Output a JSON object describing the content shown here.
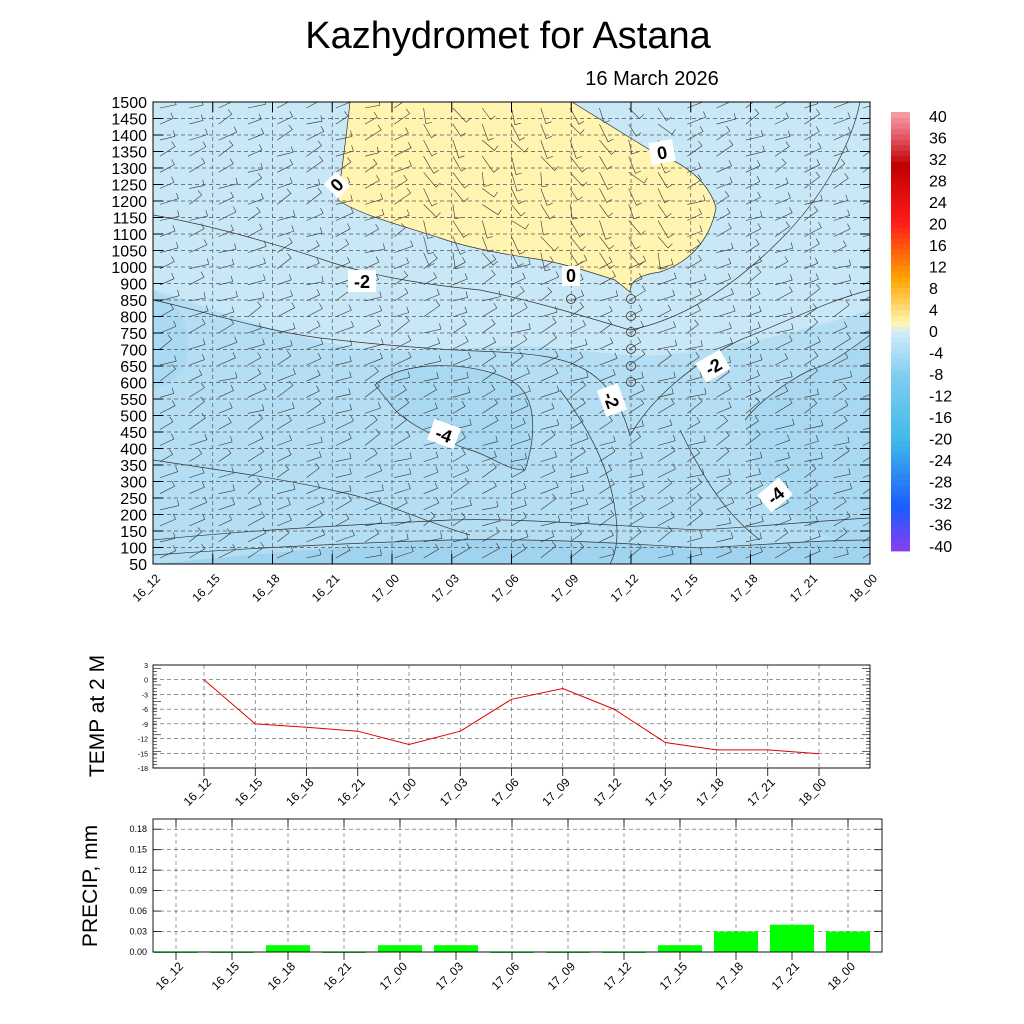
{
  "header": {
    "title": "Kazhydromet  for Astana",
    "date": "16 March 2026"
  },
  "time_labels": [
    "16_12",
    "16_15",
    "16_18",
    "16_21",
    "17_00",
    "17_03",
    "17_06",
    "17_09",
    "17_12",
    "17_15",
    "17_18",
    "17_21",
    "18_00"
  ],
  "chart_data": [
    {
      "type": "heatmap",
      "subtype": "time-height cross-section (filled temperature contours with wind barbs)",
      "title": "Kazhydromet  for Astana",
      "subtitle": "16 March 2026",
      "x": [
        "16_12",
        "16_15",
        "16_18",
        "16_21",
        "17_00",
        "17_03",
        "17_06",
        "17_09",
        "17_12",
        "17_15",
        "17_18",
        "17_21",
        "18_00"
      ],
      "y_levels": [
        50,
        100,
        150,
        200,
        250,
        300,
        350,
        400,
        450,
        500,
        550,
        600,
        650,
        700,
        750,
        800,
        850,
        900,
        1000,
        1050,
        1100,
        1150,
        1200,
        1250,
        1300,
        1350,
        1400,
        1450,
        1500
      ],
      "y_tick_labels": [
        "50",
        "100",
        "150",
        "200",
        "250",
        "300",
        "350",
        "400",
        "450",
        "500",
        "550",
        "600",
        "650",
        "700",
        "750",
        "800",
        "850",
        "900",
        "1000",
        "1050",
        "1100",
        "1150",
        "1200",
        "1250",
        "1300",
        "1350",
        "1400",
        "1450",
        "1500"
      ],
      "colorbar": {
        "levels": [
          -40,
          -36,
          -32,
          -28,
          -24,
          -20,
          -16,
          -12,
          -8,
          -4,
          0,
          4,
          8,
          12,
          16,
          20,
          24,
          28,
          32,
          36,
          40
        ],
        "labels": [
          "40",
          "36",
          "32",
          "28",
          "24",
          "20",
          "16",
          "12",
          "8",
          "4",
          "0",
          "-4",
          "-8",
          "-12",
          "-16",
          "-20",
          "-24",
          "-28",
          "-32",
          "-36",
          "-40"
        ],
        "colors": {
          "neg_light": "#d3ecf8",
          "neg_mid": "#a5d8f0",
          "neg_dark": "#3fb8e8",
          "neg_blue": "#1a5cff",
          "neg_purple": "#8a3ef0",
          "zero_band": "#fff5b0",
          "warm_orange": "#ffa500",
          "warm_red": "#ff1a1a",
          "warm_dark": "#c00000",
          "pink_top": "#f8a0a8"
        }
      },
      "contour_labels": [
        "0",
        "0",
        "0",
        "-2",
        "-2",
        "-2",
        "-4",
        "-4"
      ],
      "regions": [
        {
          "name": "above-zero",
          "value_range": [
            0,
            4
          ],
          "color": "#fff5b0"
        },
        {
          "name": "below-zero",
          "value_range": [
            -4,
            0
          ],
          "color": "#c9e8f7"
        },
        {
          "name": "cold-pocket",
          "value_range": [
            -8,
            -4
          ],
          "color": "#a8d8f2"
        }
      ],
      "grid": true
    },
    {
      "type": "line",
      "ylabel": "TEMP at 2 M",
      "x": [
        "16_12",
        "16_15",
        "16_18",
        "16_21",
        "17_00",
        "17_03",
        "17_06",
        "17_09",
        "17_12",
        "17_15",
        "17_18",
        "17_21",
        "18_00"
      ],
      "series": [
        {
          "values": [
            0,
            -9,
            -9.7,
            -10.5,
            -13.2,
            -10.5,
            -4,
            -1.8,
            -6,
            -12.8,
            -14.3,
            -14.3,
            -15.1
          ],
          "color": "#e00000"
        }
      ],
      "ylim": [
        -18,
        3
      ],
      "y_ticks": [
        3,
        0,
        -3,
        -6,
        -9,
        -12,
        -15,
        -18
      ],
      "grid": true
    },
    {
      "type": "bar",
      "ylabel": "PRECIP, mm",
      "categories": [
        "16_12",
        "16_15",
        "16_18",
        "16_21",
        "17_00",
        "17_03",
        "17_06",
        "17_09",
        "17_12",
        "17_15",
        "17_18",
        "17_21",
        "18_00"
      ],
      "values": [
        0,
        0,
        0.01,
        0,
        0.01,
        0.01,
        0,
        0,
        0,
        0.01,
        0.03,
        0.04,
        0.03
      ],
      "ylim": [
        0,
        0.195
      ],
      "y_tick_labels": [
        "0.18",
        "0.15",
        "0.12",
        "0.09",
        "0.06",
        "0.03",
        "0.00"
      ],
      "bar_color": "#00ff00",
      "grid": true
    }
  ]
}
